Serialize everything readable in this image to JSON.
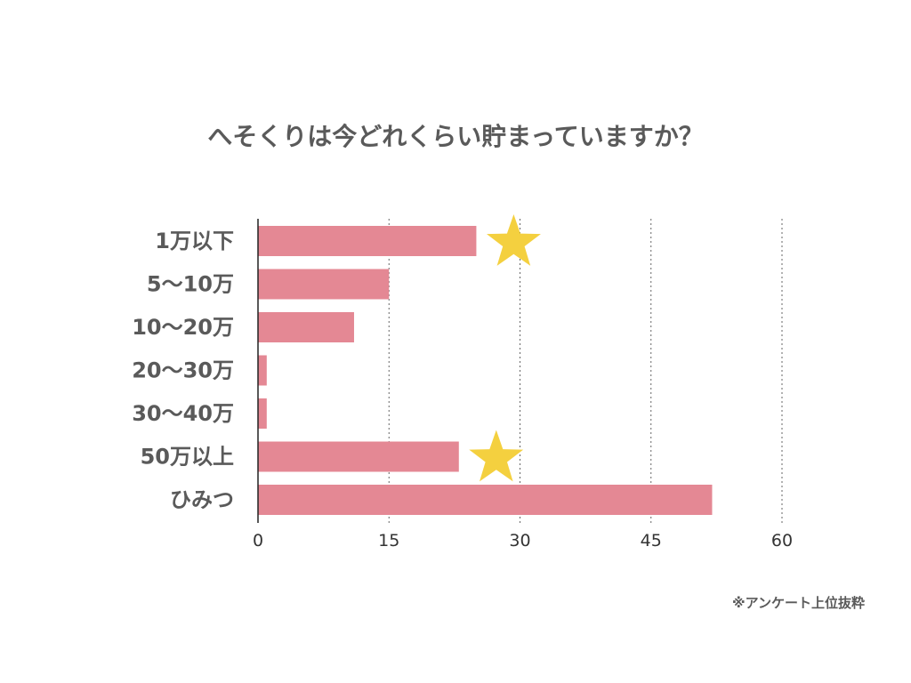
{
  "chart_data": {
    "type": "bar",
    "orientation": "horizontal",
    "title": "へそくりは今どれくらい貯まっていますか？",
    "categories": [
      "1万以下",
      "5〜10万",
      "10〜20万",
      "20〜30万",
      "30〜40万",
      "50万以上",
      "ひみつ"
    ],
    "values": [
      25,
      15,
      11,
      1,
      1,
      23,
      52
    ],
    "xlim": [
      0,
      60
    ],
    "xticks": [
      0,
      15,
      30,
      45,
      60
    ],
    "grid": "vertical dotted",
    "highlighted_categories": [
      "1万以下",
      "50万以上"
    ],
    "highlight_marker": "star-icon",
    "bar_color": "#e48894",
    "star_color": "#f4d03f"
  },
  "note": "※アンケート上位抜粋"
}
